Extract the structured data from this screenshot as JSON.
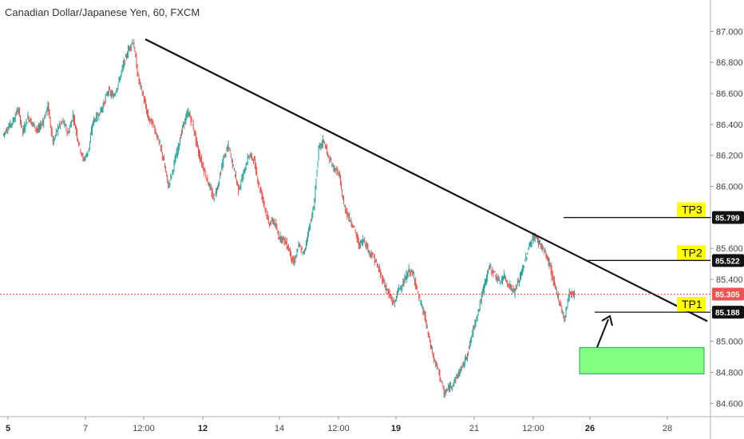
{
  "header": {
    "title": "Canadian Dollar/Japanese Yen, 60, FXCM"
  },
  "chart_data": {
    "type": "candlestick",
    "symbol": "Canadian Dollar/Japanese Yen",
    "interval": "60",
    "source": "FXCM",
    "ylim": [
      84.55,
      87.1
    ],
    "price_ticks": [
      "87.000",
      "86.800",
      "86.600",
      "86.400",
      "86.200",
      "86.000",
      "85.800",
      "85.600",
      "85.400",
      "85.200",
      "85.000",
      "84.800",
      "84.600"
    ],
    "price_tick_values": [
      87.0,
      86.8,
      86.6,
      86.4,
      86.2,
      86.0,
      85.8,
      85.6,
      85.4,
      85.2,
      85.0,
      84.8,
      84.6
    ],
    "time_ticks": [
      {
        "label": "5",
        "bold": true
      },
      {
        "label": "7",
        "bold": false
      },
      {
        "label": "12:00",
        "bold": false
      },
      {
        "label": "12",
        "bold": true
      },
      {
        "label": "14",
        "bold": false
      },
      {
        "label": "12:00",
        "bold": false
      },
      {
        "label": "19",
        "bold": true
      },
      {
        "label": "21",
        "bold": false
      },
      {
        "label": "12:00",
        "bold": false
      },
      {
        "label": "26",
        "bold": true
      },
      {
        "label": "28",
        "bold": false
      }
    ],
    "price_path": [
      86.33,
      86.38,
      86.42,
      86.5,
      86.35,
      86.45,
      86.4,
      86.36,
      86.42,
      86.52,
      86.28,
      86.38,
      86.42,
      86.34,
      86.46,
      86.3,
      86.17,
      86.22,
      86.42,
      86.46,
      86.52,
      86.62,
      86.58,
      86.66,
      86.78,
      86.88,
      86.94,
      86.7,
      86.58,
      86.44,
      86.4,
      86.3,
      86.18,
      86.0,
      86.12,
      86.26,
      86.4,
      86.48,
      86.38,
      86.22,
      86.12,
      86.02,
      85.92,
      86.02,
      86.18,
      86.26,
      86.12,
      85.98,
      86.08,
      86.2,
      86.18,
      86.02,
      85.9,
      85.76,
      85.78,
      85.68,
      85.66,
      85.6,
      85.5,
      85.62,
      85.56,
      85.72,
      85.86,
      86.24,
      86.3,
      86.18,
      86.12,
      86.08,
      85.88,
      85.8,
      85.74,
      85.62,
      85.66,
      85.58,
      85.54,
      85.46,
      85.38,
      85.3,
      85.24,
      85.34,
      85.38,
      85.46,
      85.42,
      85.28,
      85.18,
      85.02,
      84.88,
      84.8,
      84.66,
      84.7,
      84.74,
      84.8,
      84.86,
      84.96,
      85.1,
      85.22,
      85.36,
      85.48,
      85.44,
      85.38,
      85.42,
      85.36,
      85.32,
      85.4,
      85.5,
      85.62,
      85.68,
      85.64,
      85.58,
      85.5,
      85.36,
      85.26,
      85.14,
      85.32,
      85.3
    ],
    "last_price": "85.305",
    "trendline": {
      "from": {
        "bar": 26,
        "price": 86.95
      },
      "to": {
        "bar": 130,
        "price": 85.13
      }
    },
    "levels": [
      {
        "label": "TP3",
        "price": 85.799,
        "price_text": "85.799"
      },
      {
        "label": "TP2",
        "price": 85.522,
        "price_text": "85.522"
      },
      {
        "label": "TP1",
        "price": 85.188,
        "price_text": "85.188"
      }
    ],
    "zone": {
      "price_top": 84.96,
      "price_bottom": 84.79
    },
    "colors": {
      "up": "#26a69a",
      "down": "#ef5350",
      "zone": "#80ff80",
      "zone_border": "#2e9e5e",
      "tp_bg": "#ffff00",
      "last_price_bg": "#ef5350",
      "text": "#333333"
    }
  }
}
